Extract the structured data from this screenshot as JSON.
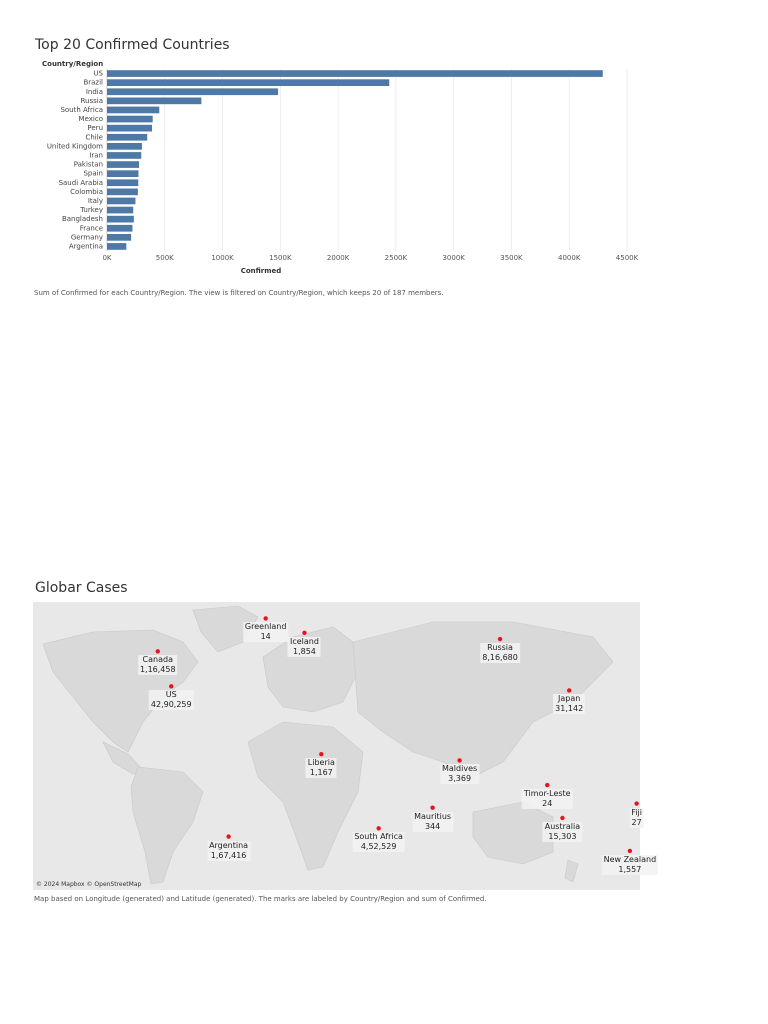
{
  "bar_chart": {
    "title": "Top 20 Confirmed Countries",
    "caption": "Sum of Confirmed for each Country/Region. The view is filtered on Country/Region, which keeps 20 of 187 members."
  },
  "map_chart": {
    "title": "Globar Cases",
    "caption": "Map based on Longitude (generated) and Latitude (generated).  The marks are labeled by Country/Region and sum of Confirmed.",
    "attribution": "© 2024 Mapbox © OpenStreetMap",
    "labels": [
      {
        "name": "Greenland",
        "value": "14"
      },
      {
        "name": "Iceland",
        "value": "1,854"
      },
      {
        "name": "Canada",
        "value": "1,16,458"
      },
      {
        "name": "US",
        "value": "42,90,259"
      },
      {
        "name": "Russia",
        "value": "8,16,680"
      },
      {
        "name": "Japan",
        "value": "31,142"
      },
      {
        "name": "Liberia",
        "value": "1,167"
      },
      {
        "name": "Maldives",
        "value": "3,369"
      },
      {
        "name": "Mauritius",
        "value": "344"
      },
      {
        "name": "South Africa",
        "value": "4,52,529"
      },
      {
        "name": "Timor-Leste",
        "value": "24"
      },
      {
        "name": "Australia",
        "value": "15,303"
      },
      {
        "name": "Fiji",
        "value": "27"
      },
      {
        "name": "New Zealand",
        "value": "1,557"
      },
      {
        "name": "Argentina",
        "value": "1,67,416"
      }
    ],
    "colors": {
      "mark": "#e8141b",
      "land": "#d9d9d9",
      "water": "#e8e8e8"
    }
  },
  "chart_data": [
    {
      "type": "bar",
      "orientation": "horizontal",
      "title": "Top 20 Confirmed Countries",
      "xlabel": "Confirmed",
      "ylabel": "Country/Region",
      "categories": [
        "US",
        "Brazil",
        "India",
        "Russia",
        "South Africa",
        "Mexico",
        "Peru",
        "Chile",
        "United Kingdom",
        "Iran",
        "Pakistan",
        "Spain",
        "Saudi Arabia",
        "Colombia",
        "Italy",
        "Turkey",
        "Bangladesh",
        "France",
        "Germany",
        "Argentina"
      ],
      "values": [
        4290259,
        2442375,
        1480073,
        816680,
        452529,
        395489,
        389717,
        347923,
        302295,
        296273,
        277402,
        272421,
        270831,
        267385,
        246286,
        227019,
        232194,
        220352,
        208546,
        167416
      ],
      "xlim": [
        0,
        4500000
      ],
      "xticks": [
        "0K",
        "500K",
        "1000K",
        "1500K",
        "2000K",
        "2500K",
        "3000K",
        "3500K",
        "4000K",
        "4500K"
      ],
      "grid": "vertical",
      "color": "#4e79a7"
    },
    {
      "type": "scatter",
      "subtype": "map",
      "title": "Globar Cases",
      "series": [
        {
          "values": [
            {
              "label": "Greenland",
              "lon": -42,
              "lat": 72,
              "value": 14
            },
            {
              "label": "Iceland",
              "lon": -19,
              "lat": 65,
              "value": 1854
            },
            {
              "label": "Canada",
              "lon": -106,
              "lat": 56,
              "value": 116458
            },
            {
              "label": "US",
              "lon": -98,
              "lat": 39,
              "value": 4290259
            },
            {
              "label": "Russia",
              "lon": 97,
              "lat": 62,
              "value": 816680
            },
            {
              "label": "Japan",
              "lon": 138,
              "lat": 37,
              "value": 31142
            },
            {
              "label": "Liberia",
              "lon": -9,
              "lat": 6,
              "value": 1167
            },
            {
              "label": "Maldives",
              "lon": 73,
              "lat": 3,
              "value": 3369
            },
            {
              "label": "Mauritius",
              "lon": 57,
              "lat": -20,
              "value": 344
            },
            {
              "label": "South Africa",
              "lon": 25,
              "lat": -30,
              "value": 452529
            },
            {
              "label": "Timor-Leste",
              "lon": 125,
              "lat": -9,
              "value": 24
            },
            {
              "label": "Australia",
              "lon": 134,
              "lat": -25,
              "value": 15303
            },
            {
              "label": "Fiji",
              "lon": 178,
              "lat": -18,
              "value": 27
            },
            {
              "label": "New Zealand",
              "lon": 174,
              "lat": -41,
              "value": 1557
            },
            {
              "label": "Argentina",
              "lon": -64,
              "lat": -34,
              "value": 167416
            }
          ]
        }
      ]
    }
  ]
}
